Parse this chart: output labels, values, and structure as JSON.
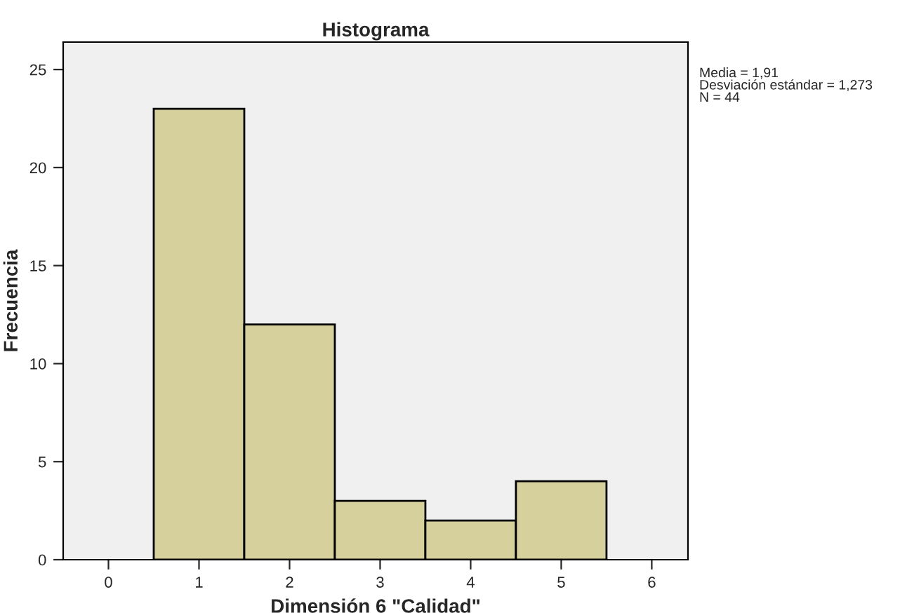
{
  "chart_data": {
    "type": "histogram",
    "title": "Histograma",
    "xlabel": "Dimensión 6 \"Calidad\"",
    "ylabel": "Frecuencia",
    "bins": [
      0.5,
      1.5,
      2.5,
      3.5,
      4.5,
      5.5
    ],
    "values": [
      23,
      12,
      3,
      2,
      4
    ],
    "color": "#d6d09c",
    "xlim": [
      -0.5,
      6.4
    ],
    "xticks": [
      0,
      1,
      2,
      3,
      4,
      5,
      6
    ],
    "ylim": [
      0,
      26.4
    ],
    "yticks": [
      0,
      5,
      10,
      15,
      20,
      25
    ],
    "grid": false,
    "annotations": [
      "Media = 1,91\nDesviación estándar = 1,273\nN = 44"
    ]
  }
}
